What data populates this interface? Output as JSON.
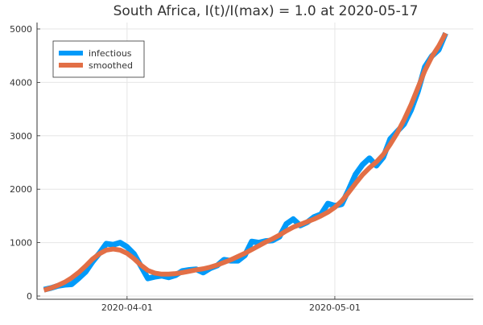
{
  "chart_data": {
    "type": "line",
    "title": "South Africa,  I(t)/I(max) = 1.0 at 2020-05-17",
    "xlabel": "",
    "ylabel": "",
    "x_range": [
      "2020-03-19",
      "2020-05-21"
    ],
    "ylim": [
      0,
      5000
    ],
    "y_ticks": [
      0,
      1000,
      2000,
      3000,
      4000,
      5000
    ],
    "x_ticks": [
      "2020-04-01",
      "2020-05-01"
    ],
    "grid": true,
    "legend": {
      "position": "top-left"
    },
    "series": [
      {
        "name": "infectious",
        "color": "#009af9",
        "points": [
          [
            "2020-03-20",
            120
          ],
          [
            "2020-03-21",
            150
          ],
          [
            "2020-03-22",
            190
          ],
          [
            "2020-03-23",
            210
          ],
          [
            "2020-03-24",
            220
          ],
          [
            "2020-03-25",
            330
          ],
          [
            "2020-03-26",
            450
          ],
          [
            "2020-03-27",
            640
          ],
          [
            "2020-03-28",
            800
          ],
          [
            "2020-03-29",
            980
          ],
          [
            "2020-03-30",
            960
          ],
          [
            "2020-03-31",
            1000
          ],
          [
            "2020-04-01",
            920
          ],
          [
            "2020-04-02",
            790
          ],
          [
            "2020-04-03",
            560
          ],
          [
            "2020-04-04",
            330
          ],
          [
            "2020-04-05",
            360
          ],
          [
            "2020-04-06",
            380
          ],
          [
            "2020-04-07",
            350
          ],
          [
            "2020-04-08",
            390
          ],
          [
            "2020-04-09",
            470
          ],
          [
            "2020-04-10",
            490
          ],
          [
            "2020-04-11",
            500
          ],
          [
            "2020-04-12",
            440
          ],
          [
            "2020-04-13",
            520
          ],
          [
            "2020-04-14",
            570
          ],
          [
            "2020-04-15",
            680
          ],
          [
            "2020-04-16",
            660
          ],
          [
            "2020-04-17",
            660
          ],
          [
            "2020-04-18",
            760
          ],
          [
            "2020-04-19",
            1020
          ],
          [
            "2020-04-20",
            1000
          ],
          [
            "2020-04-21",
            1030
          ],
          [
            "2020-04-22",
            1040
          ],
          [
            "2020-04-23",
            1110
          ],
          [
            "2020-04-24",
            1350
          ],
          [
            "2020-04-25",
            1440
          ],
          [
            "2020-04-26",
            1320
          ],
          [
            "2020-04-27",
            1380
          ],
          [
            "2020-04-28",
            1480
          ],
          [
            "2020-04-29",
            1530
          ],
          [
            "2020-04-30",
            1730
          ],
          [
            "2020-05-01",
            1690
          ],
          [
            "2020-05-02",
            1720
          ],
          [
            "2020-05-03",
            1990
          ],
          [
            "2020-05-04",
            2280
          ],
          [
            "2020-05-05",
            2460
          ],
          [
            "2020-05-06",
            2580
          ],
          [
            "2020-05-07",
            2440
          ],
          [
            "2020-05-08",
            2600
          ],
          [
            "2020-05-09",
            2940
          ],
          [
            "2020-05-10",
            3080
          ],
          [
            "2020-05-11",
            3220
          ],
          [
            "2020-05-12",
            3480
          ],
          [
            "2020-05-13",
            3830
          ],
          [
            "2020-05-14",
            4290
          ],
          [
            "2020-05-15",
            4490
          ],
          [
            "2020-05-16",
            4610
          ],
          [
            "2020-05-17",
            4920
          ]
        ]
      },
      {
        "name": "smoothed",
        "color": "#e26f46",
        "points": [
          [
            "2020-03-20",
            110
          ],
          [
            "2020-03-21",
            150
          ],
          [
            "2020-03-22",
            200
          ],
          [
            "2020-03-23",
            260
          ],
          [
            "2020-03-24",
            340
          ],
          [
            "2020-03-25",
            440
          ],
          [
            "2020-03-26",
            560
          ],
          [
            "2020-03-27",
            690
          ],
          [
            "2020-03-28",
            790
          ],
          [
            "2020-03-29",
            860
          ],
          [
            "2020-03-30",
            880
          ],
          [
            "2020-03-31",
            860
          ],
          [
            "2020-04-01",
            800
          ],
          [
            "2020-04-02",
            700
          ],
          [
            "2020-04-03",
            580
          ],
          [
            "2020-04-04",
            480
          ],
          [
            "2020-04-05",
            430
          ],
          [
            "2020-04-06",
            410
          ],
          [
            "2020-04-07",
            410
          ],
          [
            "2020-04-08",
            420
          ],
          [
            "2020-04-09",
            440
          ],
          [
            "2020-04-10",
            465
          ],
          [
            "2020-04-11",
            490
          ],
          [
            "2020-04-12",
            510
          ],
          [
            "2020-04-13",
            540
          ],
          [
            "2020-04-14",
            580
          ],
          [
            "2020-04-15",
            630
          ],
          [
            "2020-04-16",
            680
          ],
          [
            "2020-04-17",
            740
          ],
          [
            "2020-04-18",
            800
          ],
          [
            "2020-04-19",
            870
          ],
          [
            "2020-04-20",
            940
          ],
          [
            "2020-04-21",
            1010
          ],
          [
            "2020-04-22",
            1070
          ],
          [
            "2020-04-23",
            1140
          ],
          [
            "2020-04-24",
            1220
          ],
          [
            "2020-04-25",
            1290
          ],
          [
            "2020-04-26",
            1340
          ],
          [
            "2020-04-27",
            1390
          ],
          [
            "2020-04-28",
            1440
          ],
          [
            "2020-04-29",
            1500
          ],
          [
            "2020-04-30",
            1570
          ],
          [
            "2020-05-01",
            1660
          ],
          [
            "2020-05-02",
            1780
          ],
          [
            "2020-05-03",
            1940
          ],
          [
            "2020-05-04",
            2110
          ],
          [
            "2020-05-05",
            2270
          ],
          [
            "2020-05-06",
            2400
          ],
          [
            "2020-05-07",
            2510
          ],
          [
            "2020-05-08",
            2650
          ],
          [
            "2020-05-09",
            2840
          ],
          [
            "2020-05-10",
            3050
          ],
          [
            "2020-05-11",
            3300
          ],
          [
            "2020-05-12",
            3580
          ],
          [
            "2020-05-13",
            3900
          ],
          [
            "2020-05-14",
            4220
          ],
          [
            "2020-05-15",
            4480
          ],
          [
            "2020-05-16",
            4680
          ],
          [
            "2020-05-17",
            4920
          ]
        ]
      }
    ]
  }
}
